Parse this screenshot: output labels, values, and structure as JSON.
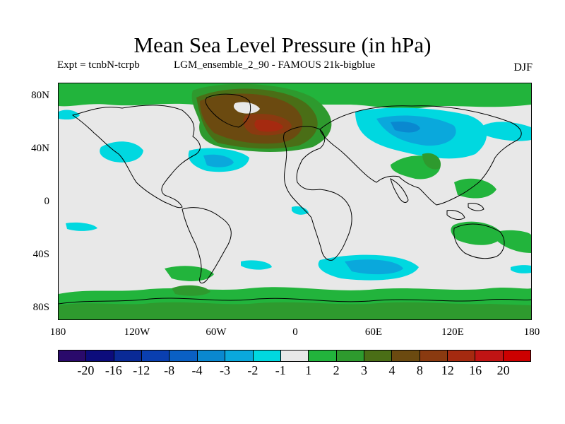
{
  "header": {
    "title": "Mean Sea Level Pressure (in hPa)",
    "expt": "Expt = tcnbN-tcrpb",
    "ensemble": "LGM_ensemble_2_90 - FAMOUS 21k-bigblue",
    "season": "DJF"
  },
  "axes": {
    "lat_ticks": [
      "80N",
      "40N",
      "0",
      "40S",
      "80S"
    ],
    "lon_ticks": [
      "180",
      "120W",
      "60W",
      "0",
      "60E",
      "120E",
      "180"
    ]
  },
  "colorbar": {
    "colors": [
      "#2a0a6b",
      "#0c0c7c",
      "#0a2a96",
      "#0a3fb0",
      "#0a60c4",
      "#0a88d0",
      "#0aa8dc",
      "#00d8e0",
      "#e8e8e8",
      "#22b43c",
      "#2e9a2e",
      "#4a6e16",
      "#6b4a10",
      "#8a3a10",
      "#a52a10",
      "#c01414",
      "#cc0000"
    ],
    "labels": [
      "-20",
      "-16",
      "-12",
      "-8",
      "-4",
      "-3",
      "-2",
      "-1",
      "1",
      "2",
      "3",
      "4",
      "8",
      "12",
      "16",
      "20"
    ]
  }
}
